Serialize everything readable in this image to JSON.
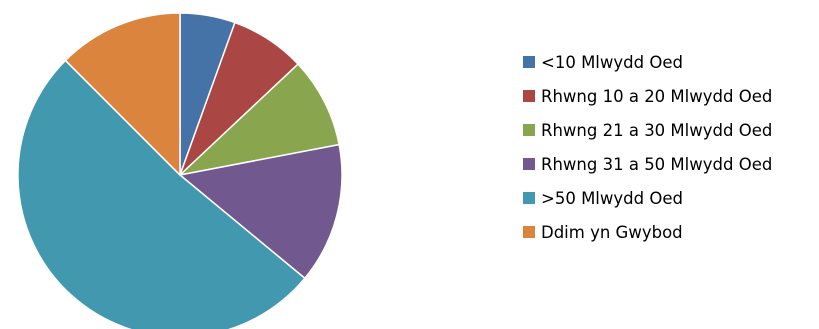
{
  "chart_data": {
    "type": "pie",
    "title": "",
    "legend_position": "right",
    "start_angle": "12 o'clock",
    "direction": "clockwise",
    "slices": [
      {
        "label": "<10 Mlwydd Oed",
        "value": 5.5,
        "color": "#4572A7"
      },
      {
        "label": "Rhwng 10 a 20 Mlwydd Oed",
        "value": 7.5,
        "color": "#AA4643"
      },
      {
        "label": "Rhwng 21 a 30 Mlwydd Oed",
        "value": 9,
        "color": "#89A54E"
      },
      {
        "label": "Rhwng 31 a 50 Mlwydd Oed",
        "value": 14,
        "color": "#71588F"
      },
      {
        "label": ">50 Mlwydd Oed",
        "value": 51.5,
        "color": "#4198AF"
      },
      {
        "label": "Ddim yn Gwybod",
        "value": 12.5,
        "color": "#DB843D"
      }
    ]
  }
}
